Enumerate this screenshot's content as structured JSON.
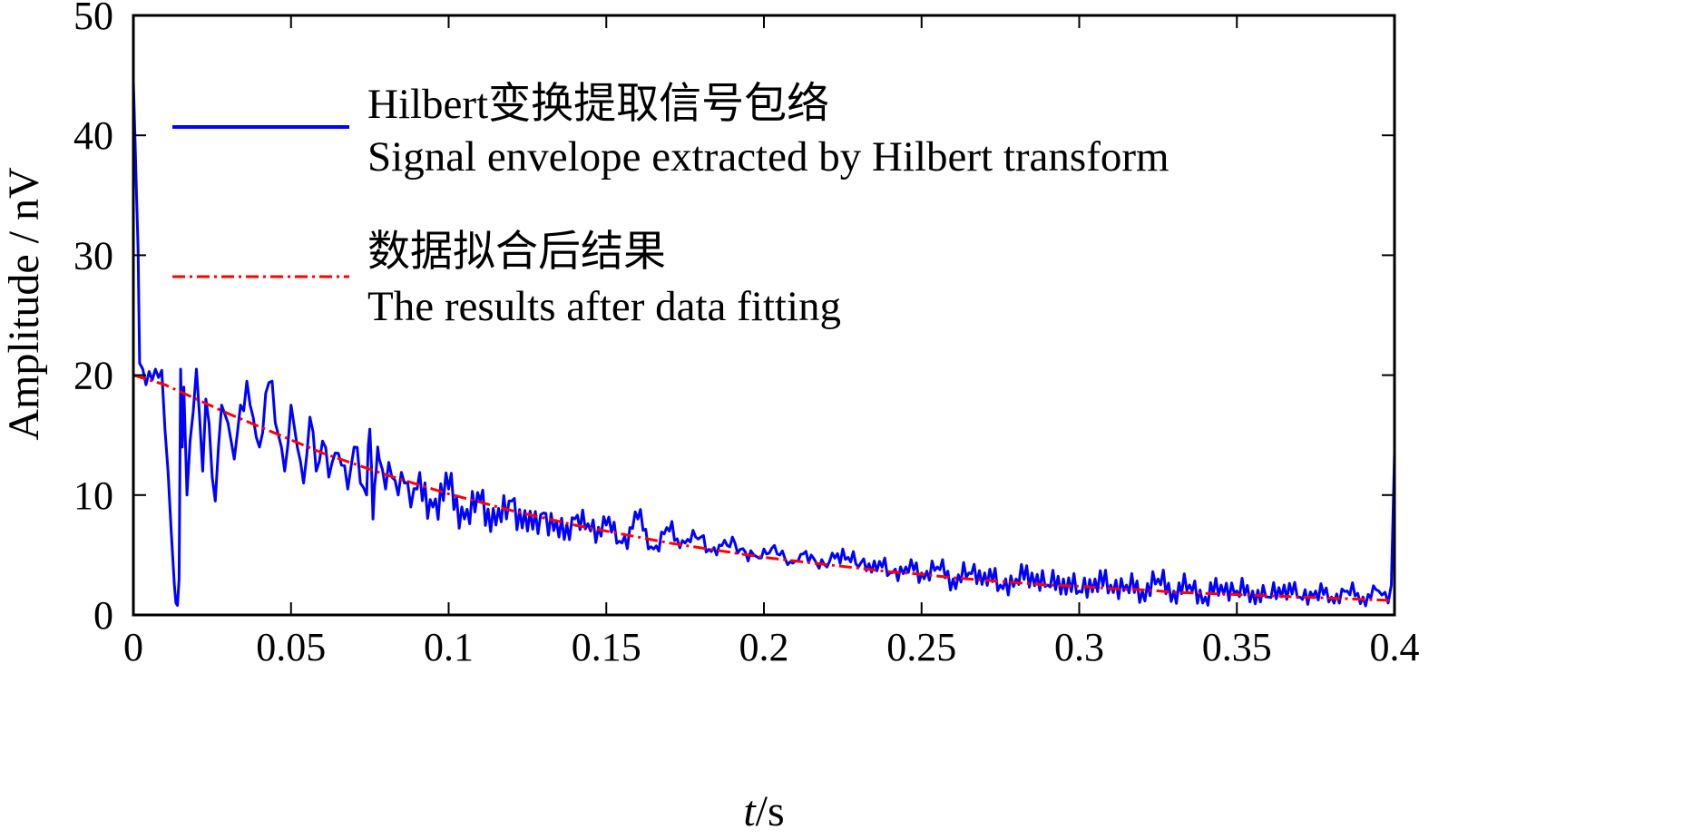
{
  "chart_data": {
    "type": "line",
    "xlabel_italic": "t",
    "xlabel_unit": "/s",
    "ylabel": "Amplitude / nV",
    "xlim": [
      0,
      0.4
    ],
    "ylim": [
      0,
      50
    ],
    "xticks": [
      0,
      0.05,
      0.1,
      0.15,
      0.2,
      0.25,
      0.3,
      0.35,
      0.4
    ],
    "xtick_labels": [
      "0",
      "0.05",
      "0.1",
      "0.15",
      "0.2",
      "0.25",
      "0.3",
      "0.35",
      "0.4"
    ],
    "yticks": [
      0,
      10,
      20,
      30,
      40,
      50
    ],
    "ytick_labels": [
      "0",
      "10",
      "20",
      "30",
      "40",
      "50"
    ],
    "grid": false,
    "legend_position": "top-left",
    "colors": {
      "envelope": "#0000ff",
      "fit": "#ff0000"
    },
    "series": [
      {
        "key": "envelope",
        "name_cn": "Hilbert变换提取信号包络",
        "name_en": "Signal envelope extracted by Hilbert transform",
        "style": "solid",
        "x": [
          0,
          0.0005,
          0.001,
          0.0015,
          0.002,
          0.003,
          0.004,
          0.005,
          0.006,
          0.007,
          0.008,
          0.009,
          0.01,
          0.011,
          0.012,
          0.013,
          0.0135,
          0.014,
          0.0145,
          0.015,
          0.0155,
          0.016,
          0.017,
          0.018,
          0.019,
          0.02,
          0.021,
          0.022,
          0.023,
          0.024,
          0.025,
          0.026,
          0.027,
          0.028,
          0.03,
          0.032,
          0.034,
          0.036,
          0.038,
          0.04,
          0.042,
          0.044,
          0.046,
          0.048,
          0.05,
          0.052,
          0.054,
          0.056,
          0.058,
          0.06,
          0.062,
          0.064,
          0.066,
          0.068,
          0.07,
          0.072,
          0.074,
          0.075,
          0.076,
          0.077,
          0.078,
          0.08,
          0.082,
          0.084,
          0.086,
          0.088,
          0.09,
          0.095,
          0.1,
          0.105,
          0.11,
          0.115,
          0.12,
          0.125,
          0.13,
          0.135,
          0.14,
          0.145,
          0.15,
          0.155,
          0.16,
          0.165,
          0.17,
          0.175,
          0.18,
          0.185,
          0.19,
          0.195,
          0.2,
          0.205,
          0.21,
          0.215,
          0.22,
          0.225,
          0.23,
          0.235,
          0.24,
          0.245,
          0.25,
          0.255,
          0.26,
          0.265,
          0.27,
          0.275,
          0.28,
          0.285,
          0.29,
          0.295,
          0.3,
          0.305,
          0.31,
          0.315,
          0.32,
          0.325,
          0.33,
          0.335,
          0.34,
          0.345,
          0.35,
          0.355,
          0.36,
          0.365,
          0.37,
          0.375,
          0.38,
          0.385,
          0.39,
          0.395,
          0.398,
          0.399,
          0.3995,
          0.4
        ],
        "y": [
          44.5,
          40.0,
          35.0,
          30.5,
          21.0,
          20.5,
          19.2,
          20.3,
          19.6,
          20.5,
          19.8,
          20.4,
          15.5,
          12.0,
          7.0,
          2.5,
          1.0,
          0.8,
          3.0,
          20.5,
          14.0,
          19.0,
          10.0,
          14.5,
          17.0,
          20.5,
          16.5,
          12.0,
          18.0,
          16.0,
          11.5,
          9.5,
          14.0,
          17.5,
          16.0,
          13.0,
          17.5,
          19.5,
          16.5,
          14.0,
          18.5,
          19.5,
          15.0,
          12.0,
          17.5,
          14.0,
          11.0,
          16.5,
          12.0,
          14.5,
          11.5,
          13.5,
          12.5,
          10.5,
          14.0,
          11.0,
          10.0,
          15.5,
          8.0,
          12.0,
          13.0,
          10.5,
          11.5,
          10.0,
          11.0,
          9.0,
          10.5,
          9.0,
          10.5,
          8.0,
          9.5,
          7.5,
          9.5,
          7.0,
          8.5,
          6.5,
          8.0,
          7.0,
          7.5,
          6.0,
          8.0,
          5.5,
          7.0,
          6.0,
          6.5,
          5.0,
          6.5,
          4.5,
          5.5,
          5.0,
          4.5,
          5.0,
          4.0,
          5.5,
          4.0,
          4.5,
          3.5,
          4.0,
          3.5,
          4.0,
          3.0,
          3.5,
          3.5,
          2.5,
          3.0,
          3.5,
          2.5,
          3.0,
          2.0,
          3.0,
          2.5,
          2.5,
          2.0,
          3.0,
          2.0,
          2.5,
          1.5,
          2.5,
          2.0,
          2.0,
          1.5,
          2.5,
          1.5,
          2.0,
          1.5,
          2.0,
          1.5,
          2.0,
          1.0,
          2.5,
          8.0,
          13.5
        ]
      },
      {
        "key": "fit",
        "name_cn": "数据拟合后结果",
        "name_en": "The results after data fitting",
        "style": "dash-dot",
        "x": [
          0,
          0.01,
          0.02,
          0.03,
          0.04,
          0.05,
          0.06,
          0.07,
          0.08,
          0.09,
          0.1,
          0.11,
          0.12,
          0.13,
          0.14,
          0.15,
          0.16,
          0.17,
          0.18,
          0.19,
          0.2,
          0.21,
          0.22,
          0.23,
          0.24,
          0.25,
          0.26,
          0.27,
          0.28,
          0.29,
          0.3,
          0.31,
          0.32,
          0.33,
          0.34,
          0.35,
          0.36,
          0.37,
          0.38,
          0.39,
          0.4
        ],
        "y": [
          20.0,
          19.2,
          18.0,
          16.8,
          15.7,
          14.6,
          13.5,
          12.6,
          11.7,
          10.9,
          10.1,
          9.4,
          8.7,
          8.1,
          7.5,
          7.0,
          6.5,
          6.0,
          5.6,
          5.2,
          4.8,
          4.5,
          4.2,
          3.9,
          3.6,
          3.4,
          3.1,
          2.9,
          2.7,
          2.5,
          2.4,
          2.2,
          2.1,
          1.9,
          1.8,
          1.7,
          1.6,
          1.5,
          1.4,
          1.3,
          1.2
        ]
      }
    ]
  }
}
